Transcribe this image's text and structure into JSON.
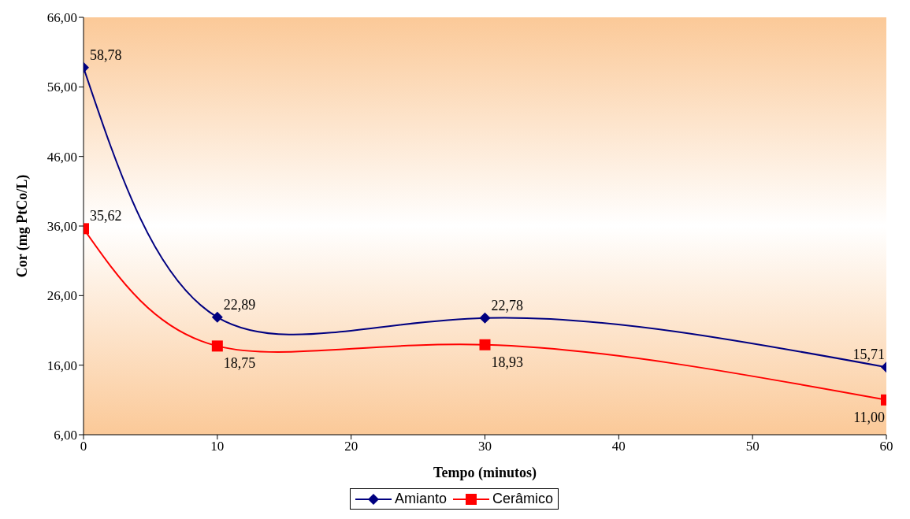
{
  "chart_data": {
    "type": "line",
    "xlabel": "Tempo (minutos)",
    "ylabel": "Cor (mg PtCo/L)",
    "x": [
      0,
      10,
      30,
      60
    ],
    "xlim": [
      0,
      60
    ],
    "xticks": [
      0,
      10,
      20,
      30,
      40,
      50,
      60
    ],
    "ylim": [
      6,
      66
    ],
    "yticks": [
      {
        "value": 6,
        "label": "6,00"
      },
      {
        "value": 16,
        "label": "16,00"
      },
      {
        "value": 26,
        "label": "26,00"
      },
      {
        "value": 36,
        "label": "36,00"
      },
      {
        "value": 46,
        "label": "46,00"
      },
      {
        "value": 56,
        "label": "56,00"
      },
      {
        "value": 66,
        "label": "66,00"
      }
    ],
    "grid": false,
    "legend": "bottom",
    "series": [
      {
        "name": "Amianto",
        "color": "#000080",
        "marker": "diamond",
        "values": [
          58.78,
          22.89,
          22.78,
          15.71
        ],
        "value_labels": [
          "58,78",
          "22,89",
          "22,78",
          "15,71"
        ]
      },
      {
        "name": "Cerâmico",
        "color": "#ff0000",
        "marker": "square",
        "values": [
          35.62,
          18.75,
          18.93,
          11.0
        ],
        "value_labels": [
          "35,62",
          "18,75",
          "18,93",
          "11,00"
        ]
      }
    ]
  }
}
